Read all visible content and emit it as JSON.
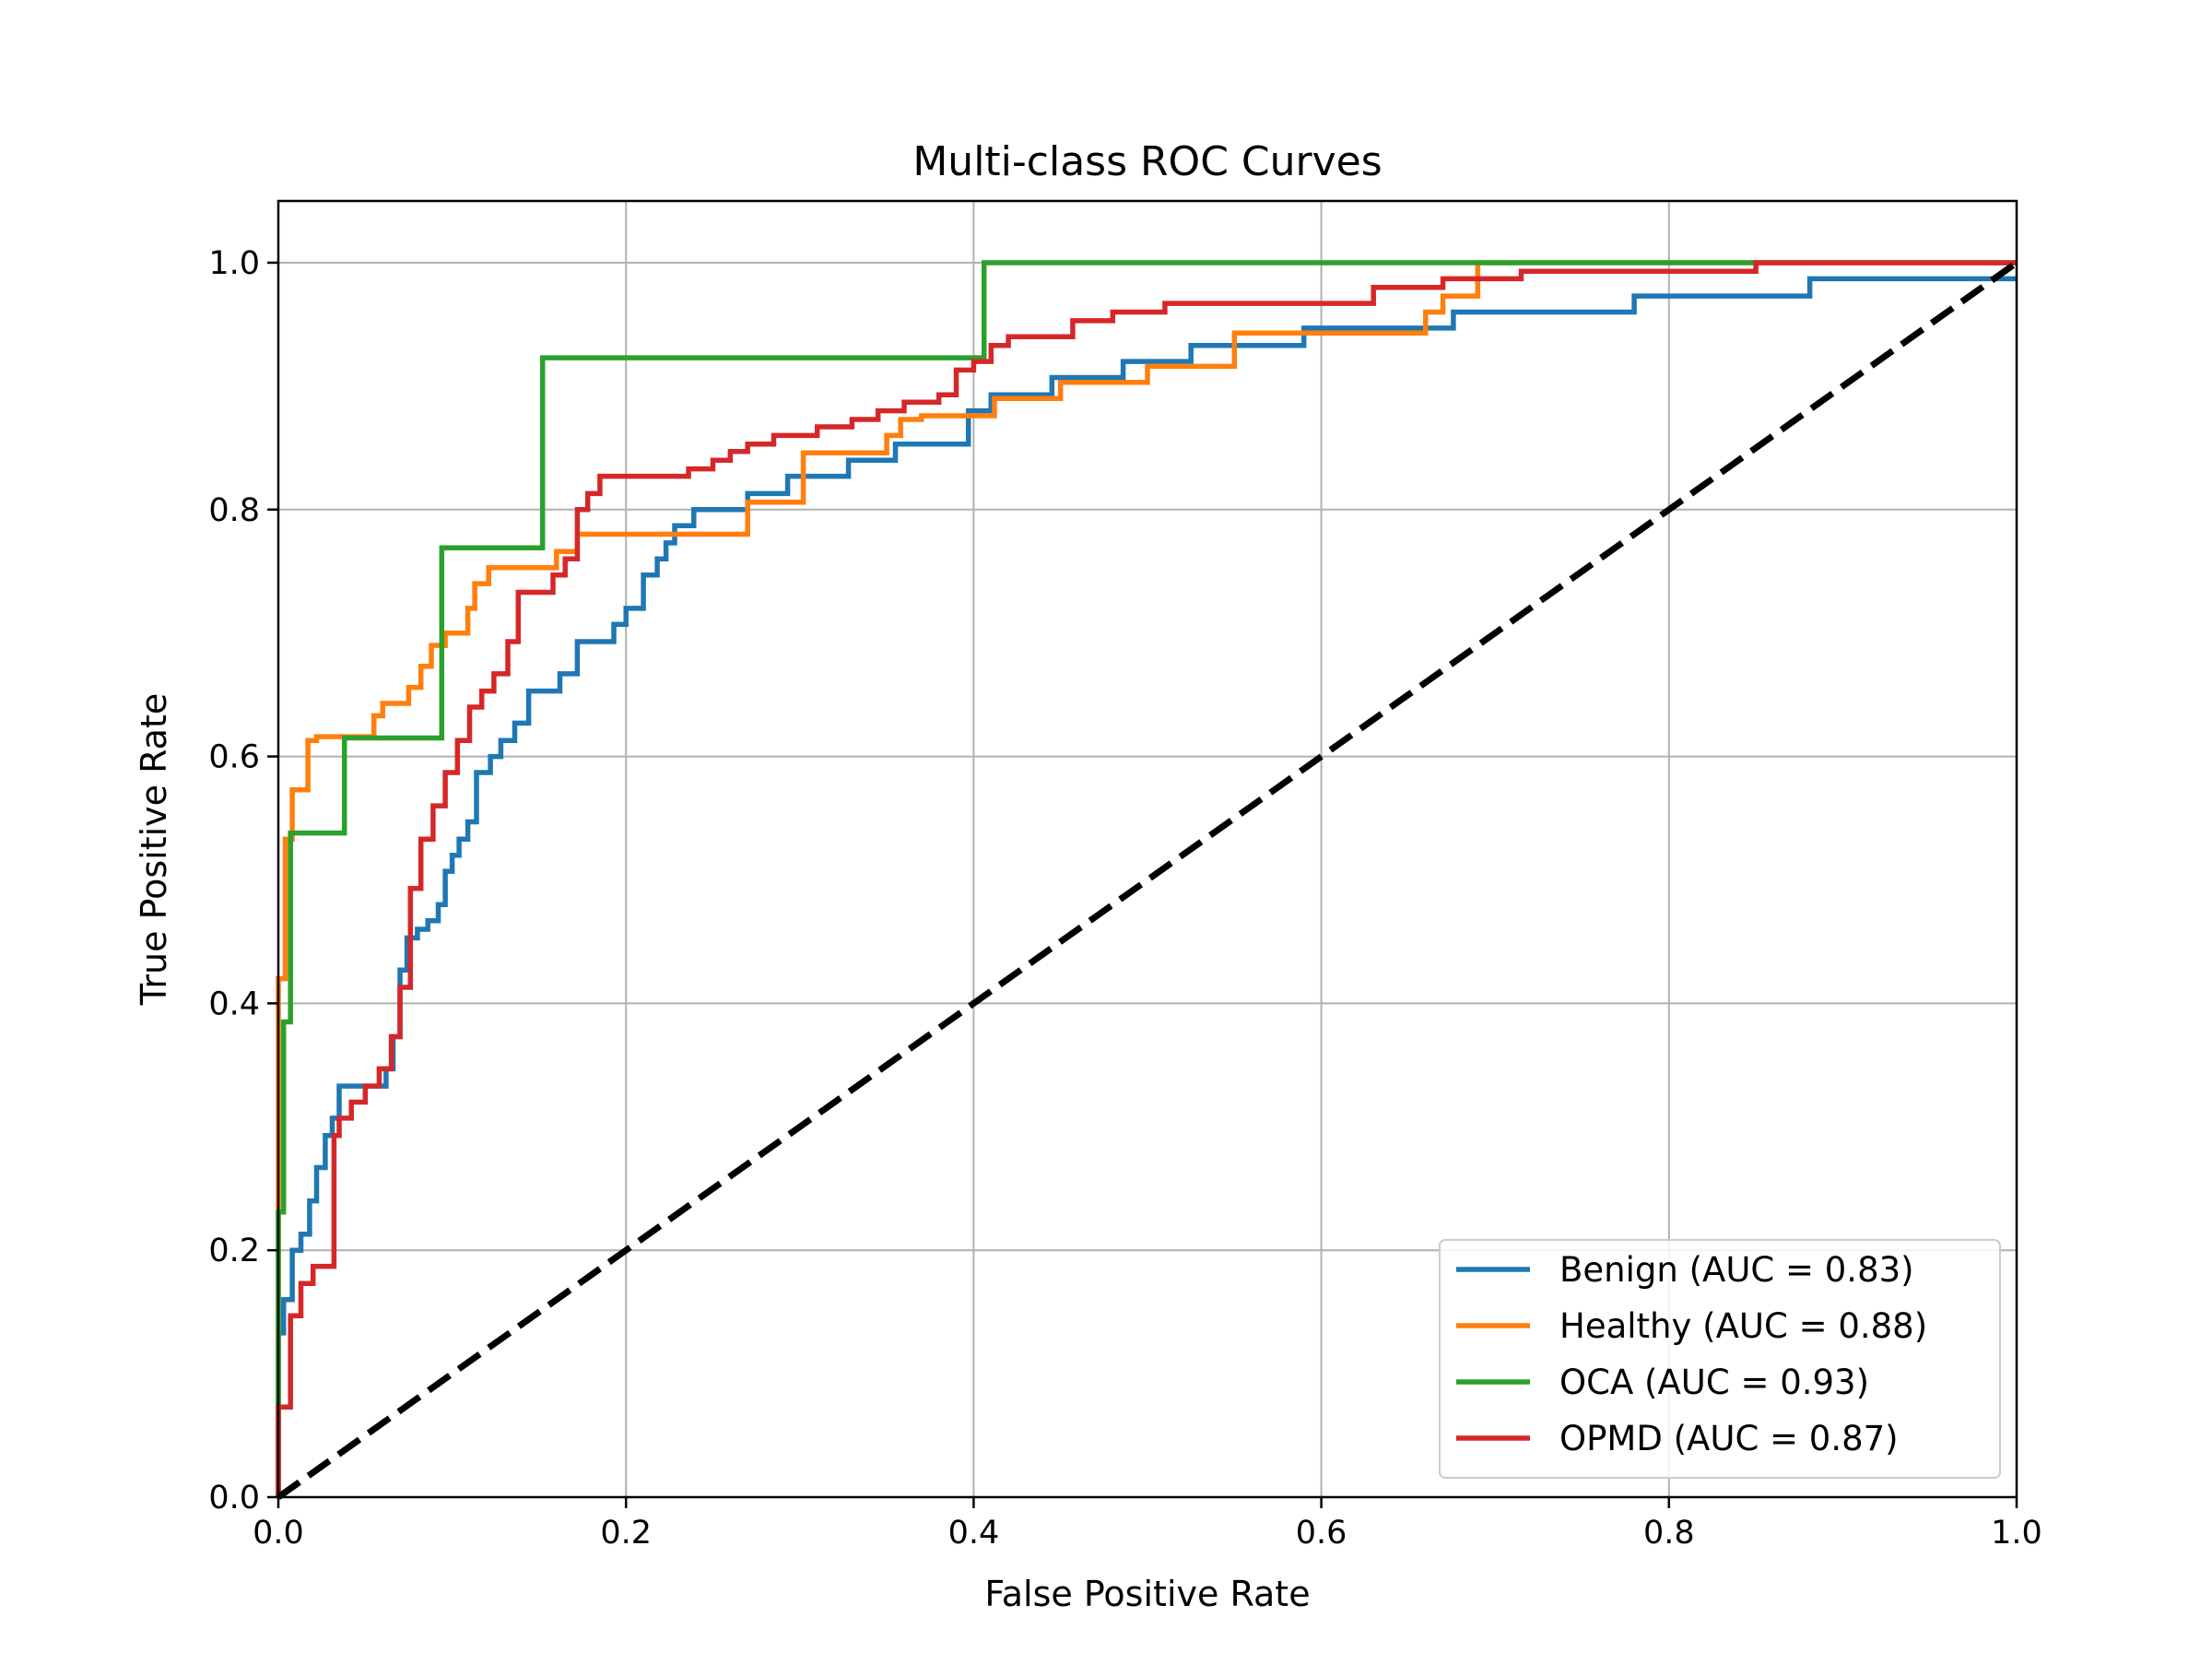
{
  "chart_data": {
    "type": "line",
    "title": "Multi-class ROC Curves",
    "xlabel": "False Positive Rate",
    "ylabel": "True Positive Rate",
    "xlim": [
      0.0,
      1.0
    ],
    "ylim": [
      0.0,
      1.05
    ],
    "xticks": [
      "0.0",
      "0.2",
      "0.4",
      "0.6",
      "0.8",
      "1.0"
    ],
    "yticks": [
      "0.0",
      "0.2",
      "0.4",
      "0.6",
      "0.8",
      "1.0"
    ],
    "grid": true,
    "legend_position": "lower-right",
    "series": [
      {
        "name": "Benign (AUC = 0.83)",
        "color": "#1f77b4",
        "x": [
          0.0,
          0.0,
          0.003,
          0.003,
          0.008,
          0.008,
          0.013,
          0.013,
          0.018,
          0.018,
          0.022,
          0.022,
          0.027,
          0.027,
          0.031,
          0.031,
          0.035,
          0.035,
          0.062,
          0.062,
          0.066,
          0.066,
          0.07,
          0.07,
          0.074,
          0.074,
          0.08,
          0.08,
          0.086,
          0.086,
          0.092,
          0.092,
          0.096,
          0.096,
          0.1,
          0.1,
          0.104,
          0.104,
          0.109,
          0.109,
          0.114,
          0.114,
          0.122,
          0.122,
          0.128,
          0.128,
          0.136,
          0.136,
          0.144,
          0.144,
          0.162,
          0.162,
          0.172,
          0.172,
          0.193,
          0.193,
          0.2,
          0.2,
          0.21,
          0.21,
          0.218,
          0.218,
          0.223,
          0.223,
          0.228,
          0.228,
          0.239,
          0.239,
          0.27,
          0.27,
          0.293,
          0.293,
          0.32,
          0.32,
          0.328,
          0.328,
          0.355,
          0.355,
          0.39,
          0.39,
          0.397,
          0.397,
          0.41,
          0.41,
          0.445,
          0.445,
          0.486,
          0.486,
          0.525,
          0.525,
          0.59,
          0.59,
          0.676,
          0.676,
          0.703,
          0.703,
          0.78,
          0.78,
          0.881,
          0.881,
          1.0,
          1.0
        ],
        "y": [
          0.0,
          0.133,
          0.133,
          0.16,
          0.16,
          0.2,
          0.2,
          0.213,
          0.213,
          0.24,
          0.24,
          0.267,
          0.267,
          0.293,
          0.293,
          0.307,
          0.307,
          0.333,
          0.333,
          0.347,
          0.347,
          0.373,
          0.373,
          0.427,
          0.427,
          0.453,
          0.453,
          0.46,
          0.46,
          0.467,
          0.467,
          0.48,
          0.48,
          0.507,
          0.507,
          0.52,
          0.52,
          0.533,
          0.533,
          0.547,
          0.547,
          0.587,
          0.587,
          0.6,
          0.6,
          0.613,
          0.613,
          0.627,
          0.627,
          0.653,
          0.653,
          0.667,
          0.667,
          0.693,
          0.693,
          0.707,
          0.707,
          0.72,
          0.72,
          0.747,
          0.747,
          0.76,
          0.76,
          0.773,
          0.773,
          0.787,
          0.787,
          0.8,
          0.8,
          0.813,
          0.813,
          0.827,
          0.827,
          0.827,
          0.827,
          0.84,
          0.84,
          0.853,
          0.853,
          0.853,
          0.853,
          0.88,
          0.88,
          0.893,
          0.893,
          0.907,
          0.907,
          0.92,
          0.92,
          0.933,
          0.933,
          0.947,
          0.947,
          0.96,
          0.96,
          0.96,
          0.96,
          0.973,
          0.973,
          0.987,
          0.987,
          0.987
        ]
      },
      {
        "name": "Healthy (AUC = 0.88)",
        "color": "#ff7f0e",
        "x": [
          0.0,
          0.0,
          0.004,
          0.004,
          0.008,
          0.008,
          0.017,
          0.017,
          0.022,
          0.022,
          0.055,
          0.055,
          0.06,
          0.06,
          0.075,
          0.075,
          0.082,
          0.082,
          0.088,
          0.088,
          0.096,
          0.096,
          0.109,
          0.109,
          0.113,
          0.113,
          0.121,
          0.121,
          0.16,
          0.16,
          0.172,
          0.172,
          0.27,
          0.27,
          0.302,
          0.302,
          0.35,
          0.35,
          0.358,
          0.358,
          0.37,
          0.37,
          0.412,
          0.412,
          0.45,
          0.45,
          0.5,
          0.5,
          0.55,
          0.55,
          0.66,
          0.66,
          0.67,
          0.67,
          0.69,
          0.69,
          0.8,
          0.8,
          1.0
        ],
        "y": [
          0.0,
          0.42,
          0.42,
          0.533,
          0.533,
          0.573,
          0.573,
          0.613,
          0.613,
          0.616,
          0.616,
          0.633,
          0.633,
          0.643,
          0.643,
          0.656,
          0.656,
          0.673,
          0.673,
          0.69,
          0.69,
          0.7,
          0.7,
          0.72,
          0.72,
          0.74,
          0.74,
          0.753,
          0.753,
          0.766,
          0.766,
          0.78,
          0.78,
          0.806,
          0.806,
          0.846,
          0.846,
          0.86,
          0.86,
          0.873,
          0.873,
          0.876,
          0.876,
          0.89,
          0.89,
          0.903,
          0.903,
          0.916,
          0.916,
          0.943,
          0.943,
          0.96,
          0.96,
          0.973,
          0.973,
          1.0,
          1.0,
          1.0,
          1.0
        ]
      },
      {
        "name": "OCA (AUC = 0.93)",
        "color": "#2ca02c",
        "x": [
          0.0,
          0.0,
          0.003,
          0.003,
          0.007,
          0.007,
          0.038,
          0.038,
          0.094,
          0.094,
          0.152,
          0.152,
          0.406,
          0.406,
          0.85,
          0.85,
          1.0
        ],
        "y": [
          0.0,
          0.231,
          0.231,
          0.385,
          0.385,
          0.538,
          0.538,
          0.615,
          0.615,
          0.769,
          0.769,
          0.923,
          0.923,
          1.0,
          1.0,
          1.0,
          1.0
        ]
      },
      {
        "name": "OPMD (AUC = 0.87)",
        "color": "#d62728",
        "x": [
          0.0,
          0.0,
          0.007,
          0.007,
          0.013,
          0.013,
          0.02,
          0.02,
          0.032,
          0.032,
          0.035,
          0.035,
          0.042,
          0.042,
          0.05,
          0.05,
          0.058,
          0.058,
          0.065,
          0.065,
          0.07,
          0.07,
          0.076,
          0.076,
          0.082,
          0.082,
          0.089,
          0.089,
          0.096,
          0.096,
          0.103,
          0.103,
          0.11,
          0.11,
          0.117,
          0.117,
          0.124,
          0.124,
          0.132,
          0.132,
          0.138,
          0.138,
          0.158,
          0.158,
          0.165,
          0.165,
          0.172,
          0.172,
          0.178,
          0.178,
          0.185,
          0.185,
          0.236,
          0.236,
          0.25,
          0.25,
          0.26,
          0.26,
          0.27,
          0.27,
          0.285,
          0.285,
          0.31,
          0.31,
          0.33,
          0.33,
          0.345,
          0.345,
          0.36,
          0.36,
          0.38,
          0.38,
          0.39,
          0.39,
          0.4,
          0.4,
          0.41,
          0.41,
          0.42,
          0.42,
          0.457,
          0.457,
          0.48,
          0.48,
          0.51,
          0.51,
          0.63,
          0.63,
          0.67,
          0.67,
          0.715,
          0.715,
          0.85,
          0.85,
          1.0
        ],
        "y": [
          0.0,
          0.073,
          0.073,
          0.147,
          0.147,
          0.173,
          0.173,
          0.187,
          0.187,
          0.293,
          0.293,
          0.307,
          0.307,
          0.32,
          0.32,
          0.333,
          0.333,
          0.347,
          0.347,
          0.373,
          0.373,
          0.413,
          0.413,
          0.493,
          0.493,
          0.533,
          0.533,
          0.56,
          0.56,
          0.587,
          0.587,
          0.613,
          0.613,
          0.64,
          0.64,
          0.653,
          0.653,
          0.667,
          0.667,
          0.693,
          0.693,
          0.733,
          0.733,
          0.747,
          0.747,
          0.76,
          0.76,
          0.8,
          0.8,
          0.813,
          0.813,
          0.827,
          0.827,
          0.833,
          0.833,
          0.84,
          0.84,
          0.847,
          0.847,
          0.853,
          0.853,
          0.86,
          0.86,
          0.867,
          0.867,
          0.873,
          0.873,
          0.88,
          0.88,
          0.887,
          0.887,
          0.893,
          0.893,
          0.913,
          0.913,
          0.92,
          0.92,
          0.933,
          0.933,
          0.94,
          0.94,
          0.953,
          0.953,
          0.96,
          0.96,
          0.967,
          0.967,
          0.98,
          0.98,
          0.987,
          0.987,
          0.993,
          0.993,
          1.0,
          1.0
        ]
      },
      {
        "name": "",
        "color": "#000000",
        "dashed": true,
        "x": [
          0.0,
          1.0
        ],
        "y": [
          0.0,
          1.0
        ]
      }
    ]
  }
}
